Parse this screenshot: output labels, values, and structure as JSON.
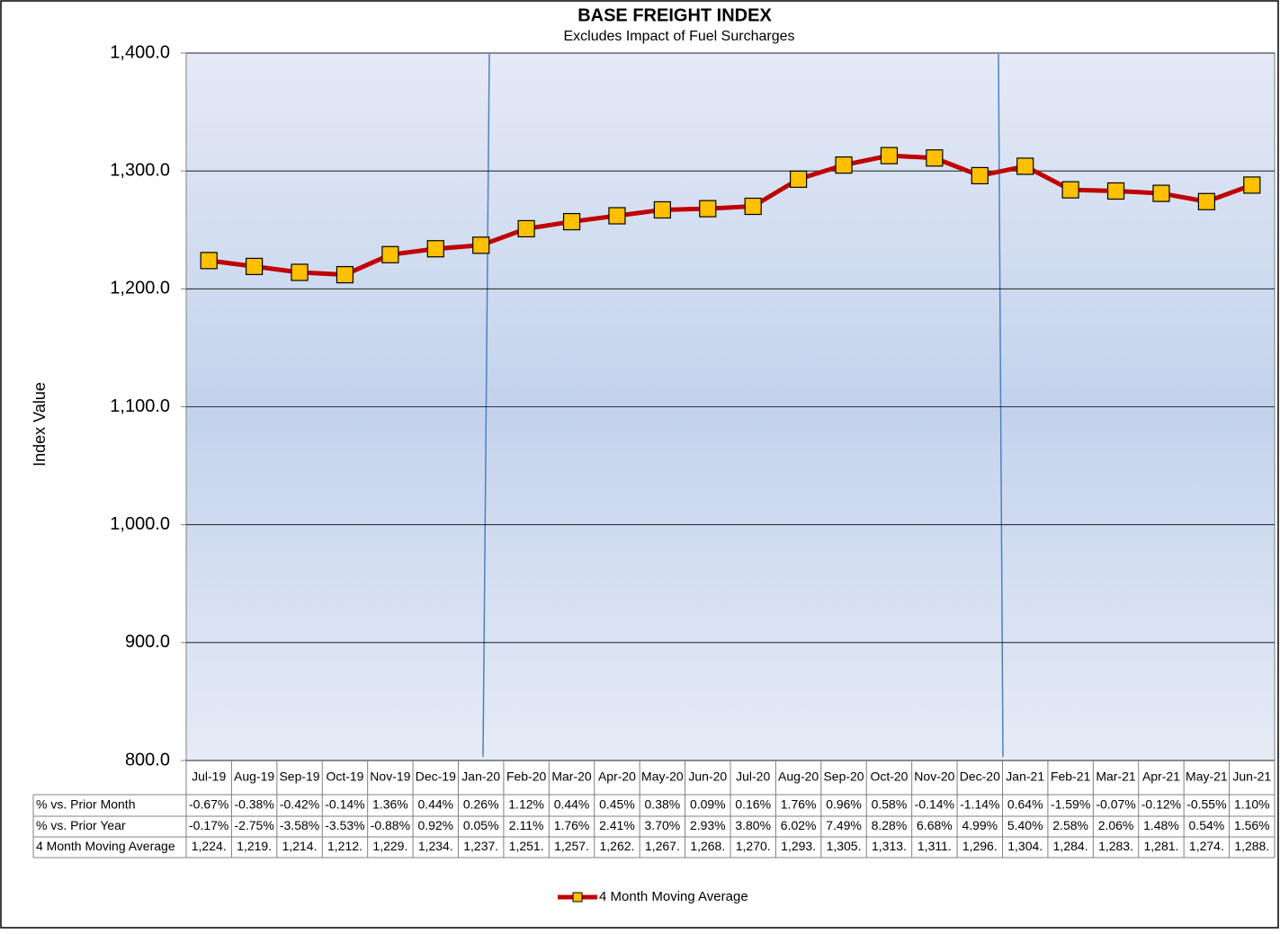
{
  "chart_data": {
    "type": "line",
    "title": "BASE FREIGHT INDEX",
    "subtitle": "Excludes Impact of Fuel Surcharges",
    "y_label": "Index Value",
    "categories": [
      "Jul-19",
      "Aug-19",
      "Sep-19",
      "Oct-19",
      "Nov-19",
      "Dec-19",
      "Jan-20",
      "Feb-20",
      "Mar-20",
      "Apr-20",
      "May-20",
      "Jun-20",
      "Jul-20",
      "Aug-20",
      "Sep-20",
      "Oct-20",
      "Nov-20",
      "Dec-20",
      "Jan-21",
      "Feb-21",
      "Mar-21",
      "Apr-21",
      "May-21",
      "Jun-21"
    ],
    "series": [
      {
        "name": "4 Month Moving Average",
        "color": "#c00000",
        "marker_color": "#ffc000",
        "values": [
          1224,
          1219,
          1214,
          1212,
          1229,
          1234,
          1237,
          1251,
          1257,
          1262,
          1267,
          1268,
          1270,
          1293,
          1305,
          1313,
          1311,
          1296,
          1304,
          1284,
          1283,
          1281,
          1274,
          1288
        ],
        "value_labels": [
          "1,224.",
          "1,219.",
          "1,214.",
          "1,212.",
          "1,229.",
          "1,234.",
          "1,237.",
          "1,251.",
          "1,257.",
          "1,262.",
          "1,267.",
          "1,268.",
          "1,270.",
          "1,293.",
          "1,305.",
          "1,313.",
          "1,311.",
          "1,296.",
          "1,304.",
          "1,284.",
          "1,283.",
          "1,281.",
          "1,274.",
          "1,288."
        ]
      }
    ],
    "table_rows": [
      {
        "name": "% vs. Prior Month",
        "cells": [
          "-0.67%",
          "-0.38%",
          "-0.42%",
          "-0.14%",
          "1.36%",
          "0.44%",
          "0.26%",
          "1.12%",
          "0.44%",
          "0.45%",
          "0.38%",
          "0.09%",
          "0.16%",
          "1.76%",
          "0.96%",
          "0.58%",
          "-0.14%",
          "-1.14%",
          "0.64%",
          "-1.59%",
          "-0.07%",
          "-0.12%",
          "-0.55%",
          "1.10%"
        ]
      },
      {
        "name": "% vs. Prior Year",
        "cells": [
          "-0.17%",
          "-2.75%",
          "-3.58%",
          "-3.53%",
          "-0.88%",
          "0.92%",
          "0.05%",
          "2.11%",
          "1.76%",
          "2.41%",
          "3.70%",
          "2.93%",
          "3.80%",
          "6.02%",
          "7.49%",
          "8.28%",
          "6.68%",
          "4.99%",
          "5.40%",
          "2.58%",
          "2.06%",
          "1.48%",
          "0.54%",
          "1.56%"
        ]
      }
    ],
    "ylim": [
      800,
      1400
    ],
    "yticks": [
      {
        "value": 800,
        "label": "800.0"
      },
      {
        "value": 900,
        "label": "900.0"
      },
      {
        "value": 1000,
        "label": "1,000.0"
      },
      {
        "value": 1100,
        "label": "1,100.0"
      },
      {
        "value": 1200,
        "label": "1,200.0"
      },
      {
        "value": 1300,
        "label": "1,300.0"
      },
      {
        "value": 1400,
        "label": "1,400.0"
      }
    ],
    "grid": true,
    "legend": "bottom"
  }
}
